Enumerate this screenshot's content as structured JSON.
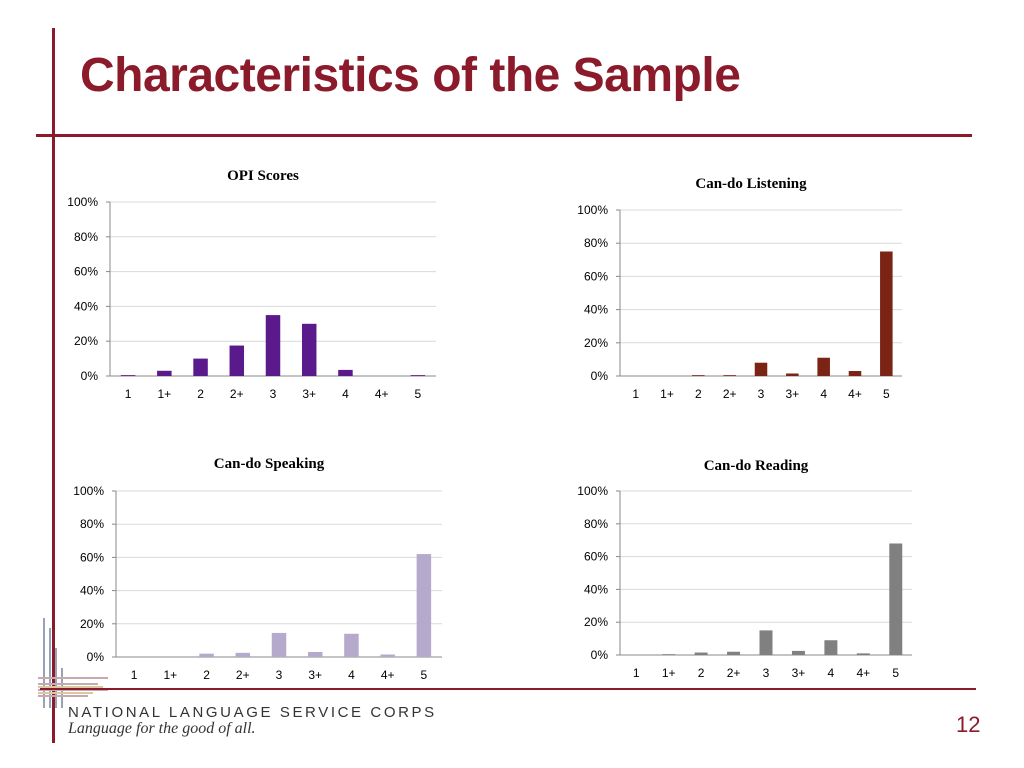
{
  "slide": {
    "title": "Characteristics of the Sample",
    "page_number": "12"
  },
  "footer": {
    "org_name": "NATIONAL LANGUAGE SERVICE CORPS",
    "tagline": "Language for the good of all."
  },
  "colors": {
    "accent": "#8b1a2b"
  },
  "chart_data": [
    {
      "type": "bar",
      "title": "OPI Scores",
      "categories": [
        "1",
        "1+",
        "2",
        "2+",
        "3",
        "3+",
        "4",
        "4+",
        "5"
      ],
      "values": [
        0.5,
        3,
        10,
        17.5,
        35,
        30,
        3.5,
        0,
        0.5
      ],
      "ylim": [
        0,
        100
      ],
      "yticks": [
        "0%",
        "20%",
        "40%",
        "60%",
        "80%",
        "100%"
      ],
      "color": "#5b1a8b"
    },
    {
      "type": "bar",
      "title": "Can-do Listening",
      "categories": [
        "1",
        "1+",
        "2",
        "2+",
        "3",
        "3+",
        "4",
        "4+",
        "5"
      ],
      "values": [
        0,
        0,
        0.5,
        0.5,
        8,
        1.5,
        11,
        3,
        75
      ],
      "ylim": [
        0,
        100
      ],
      "yticks": [
        "0%",
        "20%",
        "40%",
        "60%",
        "80%",
        "100%"
      ],
      "color": "#7b2314"
    },
    {
      "type": "bar",
      "title": "Can-do Speaking",
      "categories": [
        "1",
        "1+",
        "2",
        "2+",
        "3",
        "3+",
        "4",
        "4+",
        "5"
      ],
      "values": [
        0,
        0,
        2,
        2.5,
        14.5,
        3,
        14,
        1.5,
        62
      ],
      "ylim": [
        0,
        100
      ],
      "yticks": [
        "0%",
        "20%",
        "40%",
        "60%",
        "80%",
        "100%"
      ],
      "color": "#b5a9cc"
    },
    {
      "type": "bar",
      "title": "Can-do Reading",
      "categories": [
        "1",
        "1+",
        "2",
        "2+",
        "3",
        "3+",
        "4",
        "4+",
        "5"
      ],
      "values": [
        0,
        0.5,
        1.5,
        2,
        15,
        2.5,
        9,
        1,
        68
      ],
      "ylim": [
        0,
        100
      ],
      "yticks": [
        "0%",
        "20%",
        "40%",
        "60%",
        "80%",
        "100%"
      ],
      "color": "#808080"
    }
  ]
}
